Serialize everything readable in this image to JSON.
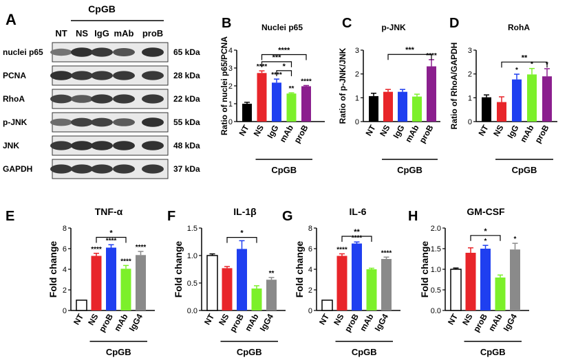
{
  "colors": {
    "NT": "#000000",
    "NS": "#e8252a",
    "IgG": "#1f3ff0",
    "proB": "#1f3ff0",
    "mAb": "#7cf02a",
    "proB_purple": "#8b1f8e",
    "IgG4": "#8a8a8a",
    "white": "#ffffff"
  },
  "western_blot": {
    "panel_label": "A",
    "group_label": "CpGB",
    "lane_labels": [
      "NT",
      "NS",
      "IgG",
      "mAb",
      "proB"
    ],
    "rows": [
      {
        "label": "nuclei p65",
        "kda": "65 kDa",
        "intensity": [
          0.55,
          0.95,
          0.9,
          0.75,
          0.95
        ]
      },
      {
        "label": "PCNA",
        "kda": "28 kDa",
        "intensity": [
          0.95,
          0.9,
          0.9,
          0.9,
          0.9
        ]
      },
      {
        "label": "RhoA",
        "kda": "22 kDa",
        "intensity": [
          0.85,
          0.7,
          0.9,
          0.9,
          0.9
        ]
      },
      {
        "label": "p-JNK",
        "kda": "55 kDa",
        "intensity": [
          0.6,
          0.85,
          0.85,
          0.7,
          0.95
        ]
      },
      {
        "label": "JNK",
        "kda": "48 kDa",
        "intensity": [
          0.9,
          0.95,
          0.95,
          0.95,
          0.95
        ]
      },
      {
        "label": "GAPDH",
        "kda": "37 kDa",
        "intensity": [
          0.9,
          0.9,
          0.9,
          0.9,
          0.9
        ]
      }
    ]
  },
  "chart_data": [
    {
      "id": "B",
      "panel_label": "B",
      "type": "bar",
      "title": "Nuclei p65",
      "ylabel": "Ratio of nuclei p65/PCNA",
      "group_label": "CpGB",
      "ylim": [
        0,
        4
      ],
      "yticks": [
        "0",
        "1",
        "2",
        "3",
        "4"
      ],
      "categories": [
        "NT",
        "NS",
        "IgG",
        "mAb",
        "proB"
      ],
      "values": [
        1.0,
        2.72,
        2.18,
        1.57,
        1.98
      ],
      "errors": [
        0.08,
        0.12,
        0.2,
        0.04,
        0.04
      ],
      "colors": [
        "#000000",
        "#e8252a",
        "#1f3ff0",
        "#7cf02a",
        "#8b1f8e"
      ],
      "filled": [
        true,
        true,
        true,
        true,
        true
      ],
      "bar_stars": [
        "",
        "****",
        "****",
        "**",
        "****"
      ],
      "brackets": [
        {
          "from": 1,
          "to": 4,
          "label": "****",
          "y": 3.75
        },
        {
          "from": 1,
          "to": 3,
          "label": "***",
          "y": 3.35
        },
        {
          "from": 2,
          "to": 3,
          "label": "*",
          "y": 2.85
        }
      ]
    },
    {
      "id": "C",
      "panel_label": "C",
      "type": "bar",
      "title": "p-JNK",
      "ylabel": "Ratio of p-JNK/JNK",
      "group_label": "CpGB",
      "ylim": [
        0,
        3
      ],
      "yticks": [
        "0",
        "1",
        "2",
        "3"
      ],
      "categories": [
        "NT",
        "NS",
        "IgG",
        "mAb",
        "proB"
      ],
      "values": [
        1.07,
        1.25,
        1.25,
        1.05,
        2.32
      ],
      "errors": [
        0.12,
        0.1,
        0.1,
        0.1,
        0.28
      ],
      "colors": [
        "#000000",
        "#e8252a",
        "#1f3ff0",
        "#7cf02a",
        "#8b1f8e"
      ],
      "filled": [
        true,
        true,
        true,
        true,
        true
      ],
      "bar_stars": [
        "",
        "",
        "",
        "",
        "****"
      ],
      "brackets": [
        {
          "from": 1,
          "to": 4,
          "label": "***",
          "y": 2.82
        }
      ]
    },
    {
      "id": "D",
      "panel_label": "D",
      "type": "bar",
      "title": "RohA",
      "ylabel": "Ratio of RhoA/GAPDH",
      "group_label": "CpGB",
      "ylim": [
        0,
        3
      ],
      "yticks": [
        "0",
        "1",
        "2",
        "3"
      ],
      "categories": [
        "NT",
        "NS",
        "IgG",
        "mAb",
        "proB"
      ],
      "values": [
        1.02,
        0.82,
        1.77,
        1.98,
        1.9
      ],
      "errors": [
        0.1,
        0.22,
        0.22,
        0.25,
        0.32
      ],
      "colors": [
        "#000000",
        "#e8252a",
        "#1f3ff0",
        "#7cf02a",
        "#8b1f8e"
      ],
      "filled": [
        true,
        true,
        true,
        true,
        true
      ],
      "bar_stars": [
        "",
        "",
        "*",
        "*",
        "*"
      ],
      "brackets": [
        {
          "from": 1,
          "to": 4,
          "label": "**",
          "y": 2.5
        }
      ]
    },
    {
      "id": "E",
      "panel_label": "E",
      "type": "bar",
      "title": "TNF-α",
      "ylabel": "Fold change",
      "group_label": "CpGB",
      "ylim": [
        0,
        8
      ],
      "yticks": [
        "0",
        "2",
        "4",
        "6",
        "8"
      ],
      "categories": [
        "NT",
        "NS",
        "proB",
        "mAb",
        "IgG4"
      ],
      "values": [
        1.0,
        5.3,
        6.1,
        4.05,
        5.38
      ],
      "errors": [
        0.0,
        0.25,
        0.28,
        0.32,
        0.35
      ],
      "colors": [
        "#ffffff",
        "#e8252a",
        "#1f3ff0",
        "#7cf02a",
        "#8a8a8a"
      ],
      "filled": [
        false,
        true,
        true,
        true,
        true
      ],
      "bar_stars": [
        "",
        "****",
        "****",
        "****",
        "****"
      ],
      "brackets": [
        {
          "from": 1,
          "to": 3,
          "label": "*",
          "y": 7.1
        }
      ]
    },
    {
      "id": "F",
      "panel_label": "F",
      "type": "bar",
      "title": "IL-1β",
      "ylabel": "Fold change",
      "group_label": "CpGB",
      "ylim": [
        0,
        1.5
      ],
      "yticks": [
        "0.0",
        "0.5",
        "1.0",
        "1.5"
      ],
      "categories": [
        "NT",
        "NS",
        "proB",
        "mAb",
        "IgG4"
      ],
      "values": [
        1.0,
        0.77,
        1.12,
        0.4,
        0.56
      ],
      "errors": [
        0.03,
        0.03,
        0.15,
        0.05,
        0.04
      ],
      "colors": [
        "#ffffff",
        "#e8252a",
        "#1f3ff0",
        "#7cf02a",
        "#8a8a8a"
      ],
      "filled": [
        false,
        true,
        true,
        true,
        true
      ],
      "bar_stars": [
        "",
        "",
        "",
        "",
        "**"
      ],
      "brackets": [
        {
          "from": 1,
          "to": 3,
          "label": "*",
          "y": 1.33
        }
      ]
    },
    {
      "id": "G",
      "panel_label": "G",
      "type": "bar",
      "title": "IL-6",
      "ylabel": "Fold change",
      "group_label": "CpGB",
      "ylim": [
        0,
        8
      ],
      "yticks": [
        "0",
        "2",
        "4",
        "6",
        "8"
      ],
      "categories": [
        "NT",
        "NS",
        "proB",
        "mAb",
        "IgG4"
      ],
      "values": [
        1.0,
        5.3,
        6.5,
        4.0,
        5.0
      ],
      "errors": [
        0.0,
        0.2,
        0.15,
        0.1,
        0.18
      ],
      "colors": [
        "#ffffff",
        "#e8252a",
        "#1f3ff0",
        "#7cf02a",
        "#8a8a8a"
      ],
      "filled": [
        false,
        true,
        true,
        true,
        true
      ],
      "bar_stars": [
        "",
        "****",
        "****",
        "",
        "****"
      ],
      "brackets": [
        {
          "from": 1,
          "to": 3,
          "label": "**",
          "y": 7.2
        }
      ]
    },
    {
      "id": "H",
      "panel_label": "H",
      "type": "bar",
      "title": "GM-CSF",
      "ylabel": "Fold change",
      "group_label": "CpGB",
      "ylim": [
        0,
        2.0
      ],
      "yticks": [
        "0.0",
        "0.5",
        "1.0",
        "1.5",
        "2.0"
      ],
      "categories": [
        "NT",
        "NS",
        "proB",
        "mAb",
        "IgG4"
      ],
      "values": [
        1.0,
        1.4,
        1.5,
        0.8,
        1.48
      ],
      "errors": [
        0.03,
        0.12,
        0.08,
        0.06,
        0.15
      ],
      "colors": [
        "#ffffff",
        "#e8252a",
        "#1f3ff0",
        "#7cf02a",
        "#8a8a8a"
      ],
      "filled": [
        false,
        true,
        true,
        true,
        true
      ],
      "bar_stars": [
        "",
        "",
        "*",
        "",
        "*"
      ],
      "brackets": [
        {
          "from": 1,
          "to": 3,
          "label": "*",
          "y": 1.82
        }
      ]
    }
  ]
}
